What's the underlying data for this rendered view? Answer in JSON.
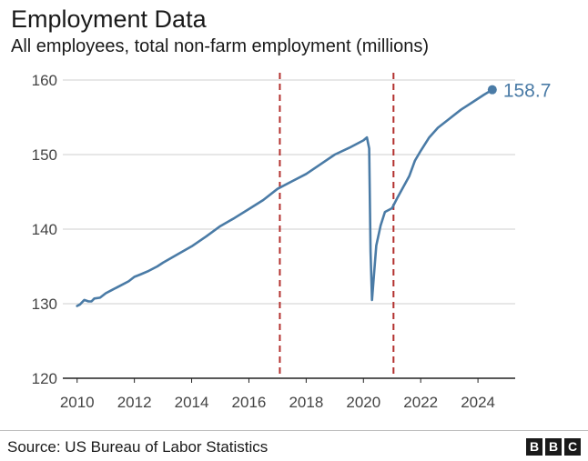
{
  "chart_data": {
    "type": "line",
    "title": "Employment Data",
    "subtitle": "All employees, total non-farm employment (millions)",
    "xlabel": "",
    "ylabel": "",
    "xlim": [
      2009.5,
      2025.3
    ],
    "ylim": [
      120,
      160
    ],
    "x_ticks": [
      2010,
      2012,
      2014,
      2016,
      2018,
      2020,
      2022,
      2024
    ],
    "y_ticks": [
      120,
      130,
      140,
      150,
      160
    ],
    "grid": "horizontal",
    "reference_lines": [
      2017.08,
      2021.05
    ],
    "series": [
      {
        "name": "Total non-farm employment",
        "color": "#4a7ba6",
        "x": [
          2010.0,
          2010.1,
          2010.25,
          2010.4,
          2010.5,
          2010.6,
          2010.8,
          2011.0,
          2011.2,
          2011.5,
          2011.8,
          2012.0,
          2012.2,
          2012.5,
          2012.8,
          2013.0,
          2013.5,
          2014.0,
          2014.5,
          2015.0,
          2015.5,
          2016.0,
          2016.5,
          2017.0,
          2017.5,
          2018.0,
          2018.5,
          2019.0,
          2019.5,
          2020.0,
          2020.12,
          2020.2,
          2020.25,
          2020.3,
          2020.35,
          2020.45,
          2020.6,
          2020.75,
          2021.0,
          2021.2,
          2021.4,
          2021.6,
          2021.8,
          2022.0,
          2022.3,
          2022.6,
          2023.0,
          2023.4,
          2023.8,
          2024.2,
          2024.5
        ],
        "values": [
          129.7,
          129.9,
          130.5,
          130.3,
          130.3,
          130.7,
          130.8,
          131.4,
          131.8,
          132.4,
          133.0,
          133.6,
          133.9,
          134.4,
          135.0,
          135.5,
          136.6,
          137.7,
          139.0,
          140.4,
          141.5,
          142.7,
          143.9,
          145.4,
          146.4,
          147.4,
          148.7,
          150.0,
          150.9,
          151.9,
          152.3,
          150.8,
          137.0,
          130.5,
          133.0,
          137.8,
          140.5,
          142.3,
          142.8,
          144.3,
          145.7,
          147.1,
          149.2,
          150.5,
          152.3,
          153.6,
          154.8,
          156.0,
          157.0,
          158.0,
          158.7
        ]
      }
    ],
    "end_label": "158.7"
  },
  "footer": {
    "source": "Source: US Bureau of Labor Statistics",
    "logo_letters": [
      "B",
      "B",
      "C"
    ]
  }
}
